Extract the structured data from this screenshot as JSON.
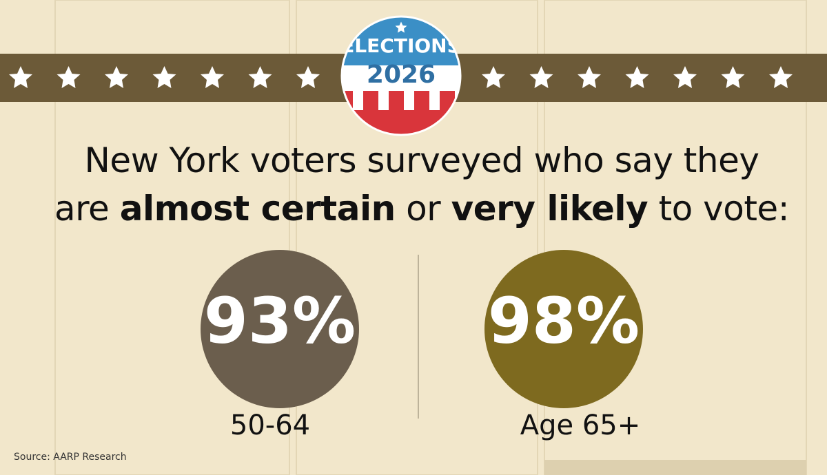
{
  "badge": {
    "title": "ELECTIONS",
    "year": "2026"
  },
  "headline": {
    "line1": "New York voters surveyed who say they",
    "line2_start": "are",
    "bold1": "almost certain",
    "middle": "or",
    "bold2": "very likely",
    "end": "to vote:"
  },
  "stats": [
    {
      "value": "93%",
      "label": "50-64",
      "color": "#6b5e4d"
    },
    {
      "value": "98%",
      "label": "Age 65+",
      "color": "#7e6a1f"
    }
  ],
  "source": "Source: AARP Research"
}
